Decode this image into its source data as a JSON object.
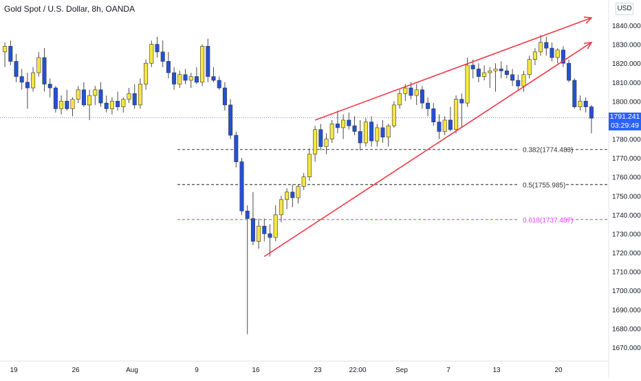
{
  "header": {
    "title": "Gold Spot / U.S. Dollar, 8h, OANDA",
    "currency": "USD"
  },
  "price_tag": {
    "price": "1791.241",
    "countdown": "03:29:49"
  },
  "colors": {
    "up_body": "#f5e642",
    "down_body": "#2451d6",
    "wick": "#4a4a4a",
    "trendline": "#f23645",
    "fib_line": "#333333",
    "fib_618": "#e040fb",
    "last_price_line": "#2962ff"
  },
  "chart_data": {
    "type": "candlestick",
    "symbol": "Gold Spot / U.S. Dollar",
    "timeframe": "8h",
    "source": "OANDA",
    "ylim": [
      1665,
      1850
    ],
    "y_ticks": [
      1670,
      1680,
      1690,
      1700,
      1710,
      1720,
      1730,
      1740,
      1750,
      1760,
      1770,
      1780,
      1790,
      1800,
      1810,
      1820,
      1830,
      1840
    ],
    "y_tick_labels": [
      "1670.000",
      "1680.000",
      "1690.000",
      "1700.000",
      "1710.000",
      "1720.000",
      "1730.000",
      "1740.000",
      "1750.000",
      "1760.000",
      "1770.000",
      "1780.000",
      "1790.000",
      "1800.000",
      "1810.000",
      "1820.000",
      "1830.000",
      "1840.000"
    ],
    "x_tick_labels": [
      "19",
      "26",
      "Aug",
      "9",
      "16",
      "23",
      "22:00",
      "Sep",
      "7",
      "13",
      "20"
    ],
    "last_price": 1791.241,
    "candles": [
      {
        "o": 1826,
        "h": 1831,
        "l": 1818,
        "c": 1829
      },
      {
        "o": 1829,
        "h": 1832,
        "l": 1819,
        "c": 1821
      },
      {
        "o": 1821,
        "h": 1825,
        "l": 1810,
        "c": 1813
      },
      {
        "o": 1813,
        "h": 1817,
        "l": 1806,
        "c": 1810
      },
      {
        "o": 1810,
        "h": 1815,
        "l": 1796,
        "c": 1807
      },
      {
        "o": 1807,
        "h": 1818,
        "l": 1805,
        "c": 1815
      },
      {
        "o": 1815,
        "h": 1826,
        "l": 1813,
        "c": 1823
      },
      {
        "o": 1823,
        "h": 1828,
        "l": 1805,
        "c": 1809
      },
      {
        "o": 1809,
        "h": 1812,
        "l": 1802,
        "c": 1807
      },
      {
        "o": 1807,
        "h": 1808,
        "l": 1794,
        "c": 1796
      },
      {
        "o": 1796,
        "h": 1803,
        "l": 1793,
        "c": 1800
      },
      {
        "o": 1800,
        "h": 1806,
        "l": 1795,
        "c": 1796
      },
      {
        "o": 1796,
        "h": 1802,
        "l": 1792,
        "c": 1801
      },
      {
        "o": 1801,
        "h": 1808,
        "l": 1799,
        "c": 1806
      },
      {
        "o": 1806,
        "h": 1810,
        "l": 1797,
        "c": 1798
      },
      {
        "o": 1798,
        "h": 1806,
        "l": 1790,
        "c": 1803
      },
      {
        "o": 1803,
        "h": 1808,
        "l": 1798,
        "c": 1806
      },
      {
        "o": 1806,
        "h": 1810,
        "l": 1797,
        "c": 1799
      },
      {
        "o": 1799,
        "h": 1803,
        "l": 1794,
        "c": 1796
      },
      {
        "o": 1796,
        "h": 1802,
        "l": 1793,
        "c": 1800
      },
      {
        "o": 1800,
        "h": 1805,
        "l": 1795,
        "c": 1797
      },
      {
        "o": 1797,
        "h": 1802,
        "l": 1794,
        "c": 1801
      },
      {
        "o": 1801,
        "h": 1807,
        "l": 1799,
        "c": 1804
      },
      {
        "o": 1804,
        "h": 1809,
        "l": 1796,
        "c": 1798
      },
      {
        "o": 1798,
        "h": 1812,
        "l": 1796,
        "c": 1809
      },
      {
        "o": 1809,
        "h": 1822,
        "l": 1806,
        "c": 1820
      },
      {
        "o": 1820,
        "h": 1832,
        "l": 1818,
        "c": 1830
      },
      {
        "o": 1830,
        "h": 1834,
        "l": 1823,
        "c": 1826
      },
      {
        "o": 1826,
        "h": 1832,
        "l": 1818,
        "c": 1821
      },
      {
        "o": 1821,
        "h": 1826,
        "l": 1812,
        "c": 1815
      },
      {
        "o": 1815,
        "h": 1818,
        "l": 1806,
        "c": 1809
      },
      {
        "o": 1809,
        "h": 1816,
        "l": 1807,
        "c": 1814
      },
      {
        "o": 1814,
        "h": 1817,
        "l": 1809,
        "c": 1811
      },
      {
        "o": 1811,
        "h": 1815,
        "l": 1807,
        "c": 1813
      },
      {
        "o": 1813,
        "h": 1818,
        "l": 1809,
        "c": 1810
      },
      {
        "o": 1810,
        "h": 1830,
        "l": 1808,
        "c": 1829
      },
      {
        "o": 1829,
        "h": 1833,
        "l": 1810,
        "c": 1813
      },
      {
        "o": 1813,
        "h": 1818,
        "l": 1810,
        "c": 1811
      },
      {
        "o": 1811,
        "h": 1813,
        "l": 1806,
        "c": 1807
      },
      {
        "o": 1807,
        "h": 1810,
        "l": 1795,
        "c": 1798
      },
      {
        "o": 1798,
        "h": 1801,
        "l": 1780,
        "c": 1782
      },
      {
        "o": 1782,
        "h": 1784,
        "l": 1765,
        "c": 1768
      },
      {
        "o": 1768,
        "h": 1770,
        "l": 1740,
        "c": 1742
      },
      {
        "o": 1742,
        "h": 1745,
        "l": 1677,
        "c": 1738
      },
      {
        "o": 1738,
        "h": 1752,
        "l": 1724,
        "c": 1726
      },
      {
        "o": 1726,
        "h": 1738,
        "l": 1722,
        "c": 1734
      },
      {
        "o": 1734,
        "h": 1738,
        "l": 1726,
        "c": 1730
      },
      {
        "o": 1730,
        "h": 1735,
        "l": 1718,
        "c": 1728
      },
      {
        "o": 1728,
        "h": 1745,
        "l": 1726,
        "c": 1740
      },
      {
        "o": 1740,
        "h": 1750,
        "l": 1736,
        "c": 1748
      },
      {
        "o": 1748,
        "h": 1754,
        "l": 1743,
        "c": 1752
      },
      {
        "o": 1752,
        "h": 1756,
        "l": 1744,
        "c": 1749
      },
      {
        "o": 1749,
        "h": 1756,
        "l": 1746,
        "c": 1755
      },
      {
        "o": 1755,
        "h": 1762,
        "l": 1753,
        "c": 1760
      },
      {
        "o": 1760,
        "h": 1775,
        "l": 1758,
        "c": 1772
      },
      {
        "o": 1772,
        "h": 1787,
        "l": 1768,
        "c": 1785
      },
      {
        "o": 1785,
        "h": 1788,
        "l": 1774,
        "c": 1776
      },
      {
        "o": 1776,
        "h": 1783,
        "l": 1772,
        "c": 1780
      },
      {
        "o": 1780,
        "h": 1790,
        "l": 1778,
        "c": 1788
      },
      {
        "o": 1788,
        "h": 1795,
        "l": 1783,
        "c": 1786
      },
      {
        "o": 1786,
        "h": 1793,
        "l": 1780,
        "c": 1790
      },
      {
        "o": 1790,
        "h": 1794,
        "l": 1785,
        "c": 1787
      },
      {
        "o": 1787,
        "h": 1792,
        "l": 1782,
        "c": 1784
      },
      {
        "o": 1784,
        "h": 1790,
        "l": 1774,
        "c": 1778
      },
      {
        "o": 1778,
        "h": 1791,
        "l": 1776,
        "c": 1789
      },
      {
        "o": 1789,
        "h": 1792,
        "l": 1776,
        "c": 1779
      },
      {
        "o": 1779,
        "h": 1788,
        "l": 1776,
        "c": 1786
      },
      {
        "o": 1786,
        "h": 1790,
        "l": 1778,
        "c": 1781
      },
      {
        "o": 1781,
        "h": 1788,
        "l": 1776,
        "c": 1787
      },
      {
        "o": 1787,
        "h": 1800,
        "l": 1786,
        "c": 1798
      },
      {
        "o": 1798,
        "h": 1806,
        "l": 1796,
        "c": 1804
      },
      {
        "o": 1804,
        "h": 1809,
        "l": 1800,
        "c": 1807
      },
      {
        "o": 1807,
        "h": 1810,
        "l": 1801,
        "c": 1803
      },
      {
        "o": 1803,
        "h": 1809,
        "l": 1798,
        "c": 1806
      },
      {
        "o": 1806,
        "h": 1808,
        "l": 1796,
        "c": 1799
      },
      {
        "o": 1799,
        "h": 1802,
        "l": 1792,
        "c": 1796
      },
      {
        "o": 1796,
        "h": 1799,
        "l": 1787,
        "c": 1789
      },
      {
        "o": 1789,
        "h": 1793,
        "l": 1780,
        "c": 1784
      },
      {
        "o": 1784,
        "h": 1792,
        "l": 1782,
        "c": 1790
      },
      {
        "o": 1790,
        "h": 1797,
        "l": 1784,
        "c": 1785
      },
      {
        "o": 1785,
        "h": 1803,
        "l": 1783,
        "c": 1801
      },
      {
        "o": 1801,
        "h": 1804,
        "l": 1786,
        "c": 1799
      },
      {
        "o": 1799,
        "h": 1823,
        "l": 1797,
        "c": 1819
      },
      {
        "o": 1819,
        "h": 1822,
        "l": 1812,
        "c": 1817
      },
      {
        "o": 1817,
        "h": 1820,
        "l": 1810,
        "c": 1813
      },
      {
        "o": 1813,
        "h": 1819,
        "l": 1811,
        "c": 1815
      },
      {
        "o": 1815,
        "h": 1818,
        "l": 1807,
        "c": 1816
      },
      {
        "o": 1816,
        "h": 1820,
        "l": 1805,
        "c": 1817
      },
      {
        "o": 1817,
        "h": 1821,
        "l": 1812,
        "c": 1816
      },
      {
        "o": 1816,
        "h": 1819,
        "l": 1812,
        "c": 1814
      },
      {
        "o": 1814,
        "h": 1817,
        "l": 1808,
        "c": 1811
      },
      {
        "o": 1811,
        "h": 1814,
        "l": 1806,
        "c": 1808
      },
      {
        "o": 1808,
        "h": 1816,
        "l": 1805,
        "c": 1814
      },
      {
        "o": 1814,
        "h": 1824,
        "l": 1812,
        "c": 1822
      },
      {
        "o": 1822,
        "h": 1828,
        "l": 1819,
        "c": 1826
      },
      {
        "o": 1826,
        "h": 1835,
        "l": 1824,
        "c": 1831
      },
      {
        "o": 1831,
        "h": 1834,
        "l": 1824,
        "c": 1828
      },
      {
        "o": 1828,
        "h": 1831,
        "l": 1821,
        "c": 1823
      },
      {
        "o": 1823,
        "h": 1828,
        "l": 1820,
        "c": 1827
      },
      {
        "o": 1827,
        "h": 1829,
        "l": 1818,
        "c": 1820
      },
      {
        "o": 1820,
        "h": 1822,
        "l": 1810,
        "c": 1811
      },
      {
        "o": 1811,
        "h": 1812,
        "l": 1796,
        "c": 1797
      },
      {
        "o": 1797,
        "h": 1803,
        "l": 1795,
        "c": 1800
      },
      {
        "o": 1800,
        "h": 1802,
        "l": 1794,
        "c": 1797
      },
      {
        "o": 1797,
        "h": 1798,
        "l": 1783,
        "c": 1791
      }
    ],
    "annotations": [
      {
        "type": "fib_level",
        "ratio": "0.382",
        "price": 1774.483,
        "label": "0.382(1774.483)",
        "style": "dashed",
        "color": "#333333"
      },
      {
        "type": "fib_level",
        "ratio": "0.5",
        "price": 1755.985,
        "label": "0.5(1755.985)",
        "style": "dashed",
        "color": "#333333"
      },
      {
        "type": "fib_level",
        "ratio": "0.618",
        "price": 1737.487,
        "label": "0.618(1737.487)",
        "style": "dashed",
        "color": "#e040fb"
      },
      {
        "type": "trendline",
        "name": "upper",
        "from": {
          "bar": 55,
          "price": 1790
        },
        "to": {
          "bar": 104,
          "price": 1844
        },
        "arrow": true
      },
      {
        "type": "trendline",
        "name": "lower",
        "from": {
          "bar": 46,
          "price": 1718
        },
        "to": {
          "bar": 104,
          "price": 1831
        },
        "arrow": true
      }
    ],
    "grid": false,
    "legend": "none"
  }
}
